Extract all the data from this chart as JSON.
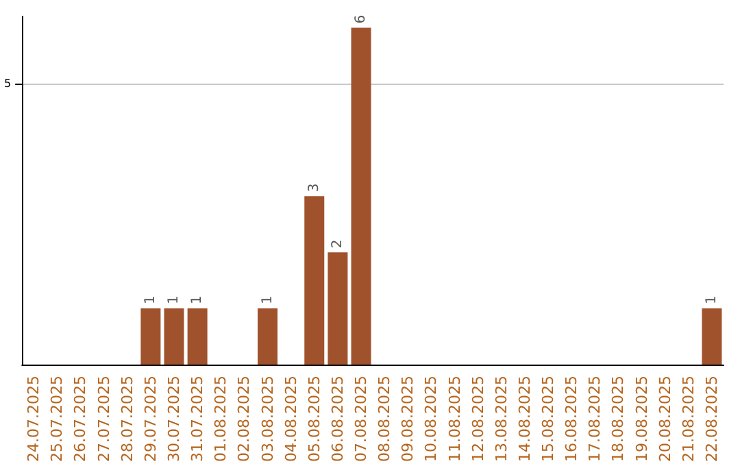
{
  "chart_data": {
    "type": "bar",
    "categories": [
      "24.07.2025",
      "25.07.2025",
      "26.07.2025",
      "27.07.2025",
      "28.07.2025",
      "29.07.2025",
      "30.07.2025",
      "31.07.2025",
      "01.08.2025",
      "02.08.2025",
      "03.08.2025",
      "04.08.2025",
      "05.08.2025",
      "06.08.2025",
      "07.08.2025",
      "08.08.2025",
      "09.08.2025",
      "10.08.2025",
      "11.08.2025",
      "12.08.2025",
      "13.08.2025",
      "14.08.2025",
      "15.08.2025",
      "16.08.2025",
      "17.08.2025",
      "18.08.2025",
      "19.08.2025",
      "20.08.2025",
      "21.08.2025",
      "22.08.2025"
    ],
    "values": [
      0,
      0,
      0,
      0,
      0,
      1,
      1,
      1,
      0,
      0,
      1,
      0,
      3,
      2,
      6,
      0,
      0,
      0,
      0,
      0,
      0,
      0,
      0,
      0,
      0,
      0,
      0,
      0,
      0,
      1
    ],
    "value_labels": [
      null,
      null,
      null,
      null,
      null,
      "1",
      "1",
      "1",
      null,
      null,
      "1",
      null,
      "3",
      "2",
      "6",
      null,
      null,
      null,
      null,
      null,
      null,
      null,
      null,
      null,
      null,
      null,
      null,
      null,
      null,
      "1"
    ],
    "color": "#a0522d",
    "ylim": [
      0,
      6.2
    ],
    "yticks": [
      5
    ],
    "grid": "y"
  }
}
